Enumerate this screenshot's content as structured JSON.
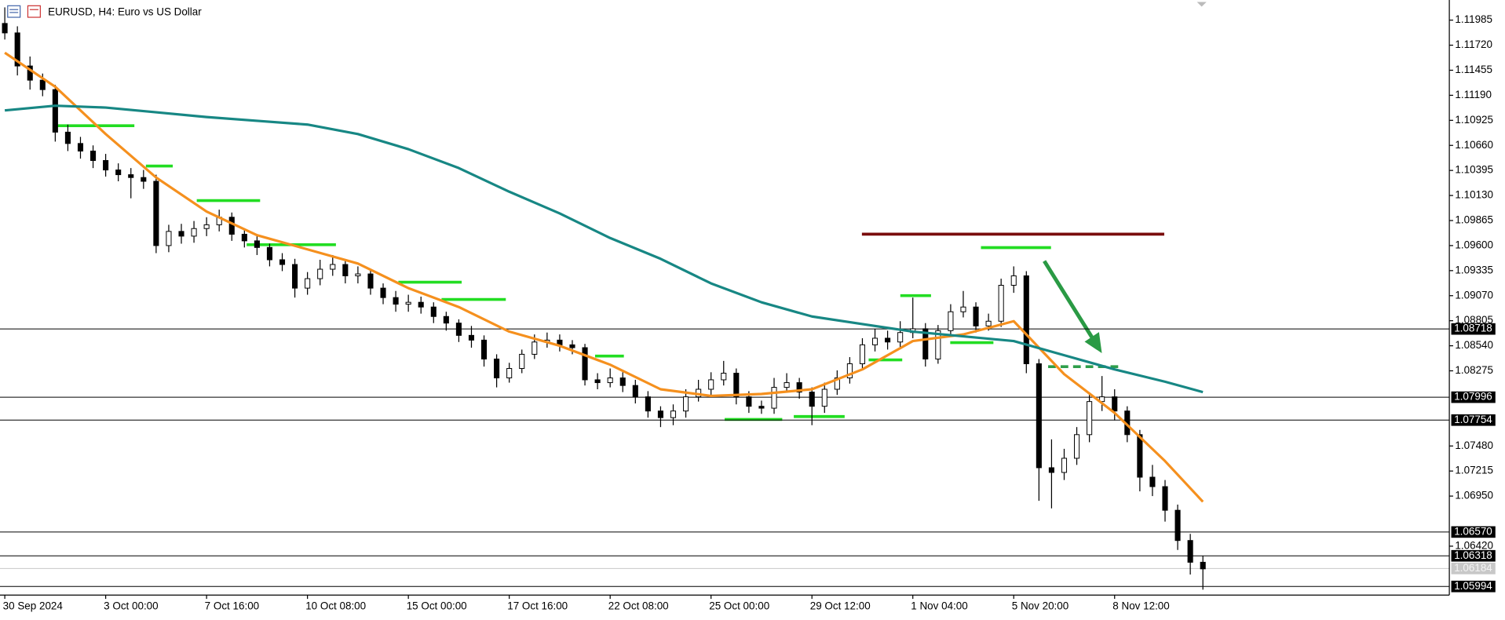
{
  "chart_data": {
    "type": "candlestick",
    "title": "EURUSD, H4:  Euro vs US Dollar",
    "open": [
      1.1195,
      1.1185,
      1.115,
      1.1135,
      1.1125,
      1.108,
      1.1068,
      1.106,
      1.105,
      1.104,
      1.1035,
      1.1032,
      1.1028,
      1.096,
      1.0975,
      1.097,
      1.0978,
      1.0982,
      1.099,
      1.0972,
      1.0965,
      1.0958,
      1.0945,
      1.094,
      1.0915,
      1.0925,
      1.0935,
      1.094,
      1.0928,
      1.093,
      1.0915,
      1.0905,
      1.0898,
      1.09,
      1.0895,
      1.0885,
      1.0878,
      1.0865,
      1.086,
      1.084,
      1.082,
      1.083,
      1.0845,
      1.0858,
      1.086,
      1.0855,
      1.0852,
      1.0818,
      1.0815,
      1.082,
      1.0812,
      1.08,
      1.0785,
      1.0778,
      1.0785,
      1.08,
      1.0808,
      1.0818,
      1.0825,
      1.08,
      1.079,
      1.0788,
      1.081,
      1.0815,
      1.0805,
      1.079,
      1.0808,
      1.082,
      1.0835,
      1.0855,
      1.0862,
      1.0858,
      1.0868,
      1.0872,
      1.084,
      1.087,
      1.089,
      1.0895,
      1.0875,
      1.088,
      1.0918,
      1.0928,
      1.0835,
      1.0725,
      1.072,
      1.0735,
      1.076,
      1.0795,
      1.08,
      1.0785,
      1.076,
      1.0715,
      1.0705,
      1.068,
      1.0648,
      1.0625
    ],
    "high": [
      1.1212,
      1.1192,
      1.116,
      1.1142,
      1.113,
      1.1088,
      1.1075,
      1.1066,
      1.1057,
      1.1047,
      1.1042,
      1.104,
      1.1035,
      1.0982,
      1.0983,
      1.0986,
      1.099,
      1.0998,
      1.0995,
      1.0978,
      1.097,
      1.0962,
      1.0952,
      1.0946,
      1.0932,
      1.0945,
      1.095,
      1.0945,
      1.0938,
      1.0935,
      1.092,
      1.0912,
      1.0908,
      1.0906,
      1.09,
      1.089,
      1.0882,
      1.0875,
      1.0865,
      1.0845,
      1.0836,
      1.085,
      1.0866,
      1.0868,
      1.0866,
      1.086,
      1.0856,
      1.0825,
      1.083,
      1.0826,
      1.0818,
      1.0806,
      1.079,
      1.0792,
      1.0808,
      1.0818,
      1.0826,
      1.0838,
      1.083,
      1.0806,
      1.0796,
      1.082,
      1.0825,
      1.082,
      1.081,
      1.0815,
      1.0828,
      1.0842,
      1.0862,
      1.0872,
      1.087,
      1.088,
      1.0905,
      1.0878,
      1.0876,
      1.0898,
      1.0912,
      1.09,
      1.0888,
      1.0925,
      1.0938,
      1.0933,
      1.084,
      1.0755,
      1.0745,
      1.0768,
      1.0802,
      1.0822,
      1.0808,
      1.079,
      1.0765,
      1.0728,
      1.0712,
      1.0686,
      1.0655,
      1.0632
    ],
    "low": [
      1.1178,
      1.114,
      1.1125,
      1.1118,
      1.107,
      1.106,
      1.1052,
      1.1042,
      1.1033,
      1.1028,
      1.101,
      1.102,
      1.0952,
      1.0953,
      1.0962,
      1.0963,
      1.097,
      1.0975,
      1.0965,
      1.0958,
      1.095,
      1.0938,
      1.0933,
      1.0905,
      1.0908,
      1.0918,
      1.0928,
      1.092,
      1.092,
      1.0908,
      1.0898,
      1.089,
      1.089,
      1.0888,
      1.0878,
      1.087,
      1.0858,
      1.0852,
      1.0832,
      1.081,
      1.0815,
      1.0825,
      1.084,
      1.0852,
      1.0848,
      1.0845,
      1.0812,
      1.0808,
      1.081,
      1.0805,
      1.0793,
      1.0778,
      1.0768,
      1.077,
      1.0778,
      1.0795,
      1.0802,
      1.0812,
      1.0792,
      1.0783,
      1.0782,
      1.0782,
      1.0805,
      1.0798,
      1.077,
      1.0783,
      1.0802,
      1.0814,
      1.083,
      1.0848,
      1.085,
      1.0852,
      1.0862,
      1.0832,
      1.0835,
      1.0864,
      1.0884,
      1.0868,
      1.087,
      1.0874,
      1.091,
      1.0825,
      1.069,
      1.0682,
      1.0712,
      1.0728,
      1.0752,
      1.0785,
      1.0775,
      1.0752,
      1.07,
      1.0695,
      1.0668,
      1.0638,
      1.0612,
      1.0596
    ],
    "close": [
      1.1185,
      1.115,
      1.1135,
      1.1125,
      1.108,
      1.1068,
      1.106,
      1.105,
      1.104,
      1.1035,
      1.1032,
      1.1028,
      1.096,
      1.0975,
      1.097,
      1.0978,
      1.0982,
      1.099,
      1.0972,
      1.0965,
      1.0958,
      1.0945,
      1.094,
      1.0915,
      1.0925,
      1.0935,
      1.094,
      1.0928,
      1.093,
      1.0915,
      1.0905,
      1.0898,
      1.09,
      1.0895,
      1.0885,
      1.0878,
      1.0865,
      1.086,
      1.084,
      1.082,
      1.083,
      1.0845,
      1.0858,
      1.086,
      1.0855,
      1.0852,
      1.0818,
      1.0815,
      1.082,
      1.0812,
      1.08,
      1.0785,
      1.0778,
      1.0785,
      1.08,
      1.0808,
      1.0818,
      1.0825,
      1.08,
      1.079,
      1.0788,
      1.081,
      1.0815,
      1.0805,
      1.079,
      1.0808,
      1.082,
      1.0835,
      1.0855,
      1.0862,
      1.0858,
      1.0868,
      1.0872,
      1.084,
      1.087,
      1.089,
      1.0895,
      1.0875,
      1.088,
      1.0918,
      1.0928,
      1.0835,
      1.0725,
      1.072,
      1.0735,
      1.076,
      1.0795,
      1.08,
      1.0785,
      1.076,
      1.0715,
      1.0705,
      1.068,
      1.0648,
      1.0625,
      1.0618
    ],
    "up_color": "#ffffff",
    "down_color": "#000000",
    "edge_color": "#000000",
    "series": [
      {
        "color": "#f5901e",
        "x": [
          0,
          4,
          8,
          12,
          16,
          20,
          24,
          28,
          32,
          36,
          40,
          44,
          48,
          52,
          56,
          60,
          64,
          68,
          72,
          76,
          80,
          84,
          88,
          92,
          95
        ],
        "values": [
          1.1164,
          1.1128,
          1.1078,
          1.1032,
          1.0996,
          1.0971,
          1.0956,
          1.0941,
          1.0915,
          1.0895,
          1.0869,
          1.0854,
          1.0834,
          1.0808,
          1.0801,
          1.0803,
          1.0808,
          1.0829,
          1.0859,
          1.0866,
          1.088,
          1.0824,
          1.0783,
          1.0732,
          1.0689
        ]
      },
      {
        "color": "#178784",
        "x": [
          0,
          4,
          8,
          12,
          16,
          20,
          24,
          28,
          32,
          36,
          40,
          44,
          48,
          52,
          56,
          60,
          64,
          68,
          72,
          76,
          80,
          84,
          88,
          92,
          95
        ],
        "values": [
          1.1103,
          1.1108,
          1.1106,
          1.1101,
          1.1096,
          1.1092,
          1.1088,
          1.1078,
          1.1062,
          1.1042,
          1.1017,
          1.0994,
          1.0968,
          1.0946,
          1.092,
          1.09,
          1.0885,
          1.0877,
          1.0869,
          1.0864,
          1.0859,
          1.0844,
          1.0829,
          1.0816,
          1.0805
        ]
      }
    ],
    "xlim": [
      -0.38,
      114.54
    ],
    "ylim": [
      1.05903,
      1.12198
    ],
    "xticks": [
      {
        "value": 0,
        "label": "30 Sep 2024"
      },
      {
        "value": 8,
        "label": "3 Oct 00:00"
      },
      {
        "value": 16,
        "label": "7 Oct 16:00"
      },
      {
        "value": 24,
        "label": "10 Oct 08:00"
      },
      {
        "value": 32,
        "label": "15 Oct 00:00"
      },
      {
        "value": 40,
        "label": "17 Oct 16:00"
      },
      {
        "value": 48,
        "label": "22 Oct 08:00"
      },
      {
        "value": 56,
        "label": "25 Oct 00:00"
      },
      {
        "value": 64,
        "label": "29 Oct 12:00"
      },
      {
        "value": 72,
        "label": "1 Nov 04:00"
      },
      {
        "value": 80,
        "label": "5 Nov 20:00"
      },
      {
        "value": 88,
        "label": "8 Nov 12:00"
      }
    ],
    "yticks": [
      {
        "value": 1.11985,
        "label": "1.11985"
      },
      {
        "value": 1.1172,
        "label": "1.11720"
      },
      {
        "value": 1.11455,
        "label": "1.11455"
      },
      {
        "value": 1.1119,
        "label": "1.11190"
      },
      {
        "value": 1.10925,
        "label": "1.10925"
      },
      {
        "value": 1.1066,
        "label": "1.10660"
      },
      {
        "value": 1.10395,
        "label": "1.10395"
      },
      {
        "value": 1.1013,
        "label": "1.10130"
      },
      {
        "value": 1.09865,
        "label": "1.09865"
      },
      {
        "value": 1.096,
        "label": "1.09600"
      },
      {
        "value": 1.09335,
        "label": "1.09335"
      },
      {
        "value": 1.0907,
        "label": "1.09070"
      },
      {
        "value": 1.08805,
        "label": "1.08805"
      },
      {
        "value": 1.0854,
        "label": "1.08540"
      },
      {
        "value": 1.08275,
        "label": "1.08275"
      },
      {
        "value": 1.0748,
        "label": "1.07480"
      },
      {
        "value": 1.07215,
        "label": "1.07215"
      },
      {
        "value": 1.0695,
        "label": "1.06950"
      },
      {
        "value": 1.0642,
        "label": "1.06420"
      }
    ],
    "levels": [
      {
        "value": 1.08718,
        "label": "1.08718"
      },
      {
        "value": 1.07996,
        "label": "1.07996"
      },
      {
        "value": 1.07754,
        "label": "1.07754"
      },
      {
        "value": 1.0657,
        "label": "1.06570"
      },
      {
        "value": 1.06318,
        "label": "1.06318"
      },
      {
        "value": 1.05994,
        "label": "1.05994"
      }
    ],
    "current_price": {
      "value": 1.06184,
      "label": "1.06184"
    }
  }
}
